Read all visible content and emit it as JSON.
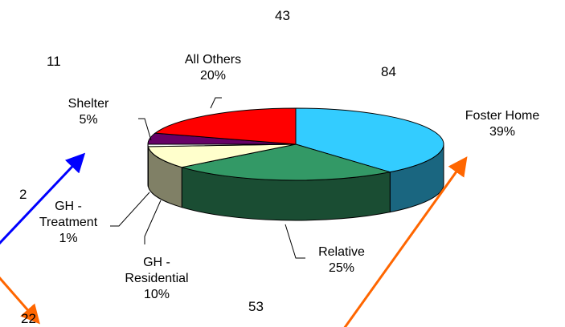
{
  "chart_data": {
    "type": "pie",
    "categories": [
      "Foster Home",
      "Relative",
      "GH - Residential",
      "GH - Treatment",
      "Shelter",
      "All Others"
    ],
    "values": [
      39,
      25,
      10,
      1,
      5,
      20
    ],
    "value_labels": [
      "39%",
      "25%",
      "10%",
      "1%",
      "5%",
      "20%"
    ],
    "colors": [
      "#33ccff",
      "#339966",
      "#ffffcc",
      "#ffffff",
      "#660066",
      "#ff0000"
    ],
    "annotations": [
      "43",
      "11",
      "84",
      "2",
      "22",
      "53"
    ]
  }
}
